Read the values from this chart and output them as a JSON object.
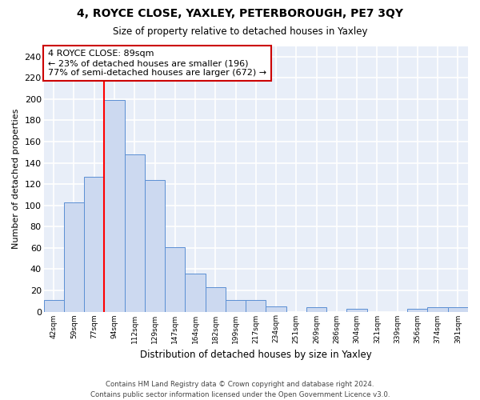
{
  "title1": "4, ROYCE CLOSE, YAXLEY, PETERBOROUGH, PE7 3QY",
  "title2": "Size of property relative to detached houses in Yaxley",
  "xlabel": "Distribution of detached houses by size in Yaxley",
  "ylabel": "Number of detached properties",
  "bin_labels": [
    "42sqm",
    "59sqm",
    "77sqm",
    "94sqm",
    "112sqm",
    "129sqm",
    "147sqm",
    "164sqm",
    "182sqm",
    "199sqm",
    "217sqm",
    "234sqm",
    "251sqm",
    "269sqm",
    "286sqm",
    "304sqm",
    "321sqm",
    "339sqm",
    "356sqm",
    "374sqm",
    "391sqm"
  ],
  "bar_values": [
    11,
    103,
    127,
    199,
    148,
    124,
    61,
    36,
    23,
    11,
    11,
    5,
    0,
    4,
    0,
    3,
    0,
    0,
    3,
    4,
    4
  ],
  "bar_color": "#ccd9f0",
  "bar_edge_color": "#5b8fd4",
  "background_color": "#e8eef8",
  "grid_color": "#ffffff",
  "red_line_x": 2.5,
  "annotation_line1": "4 ROYCE CLOSE: 89sqm",
  "annotation_line2": "← 23% of detached houses are smaller (196)",
  "annotation_line3": "77% of semi-detached houses are larger (672) →",
  "annotation_box_color": "#ffffff",
  "annotation_box_edge_color": "#cc0000",
  "footer_text": "Contains HM Land Registry data © Crown copyright and database right 2024.\nContains public sector information licensed under the Open Government Licence v3.0.",
  "fig_bg_color": "#ffffff",
  "ylim": [
    0,
    250
  ],
  "yticks": [
    0,
    20,
    40,
    60,
    80,
    100,
    120,
    140,
    160,
    180,
    200,
    220,
    240
  ]
}
